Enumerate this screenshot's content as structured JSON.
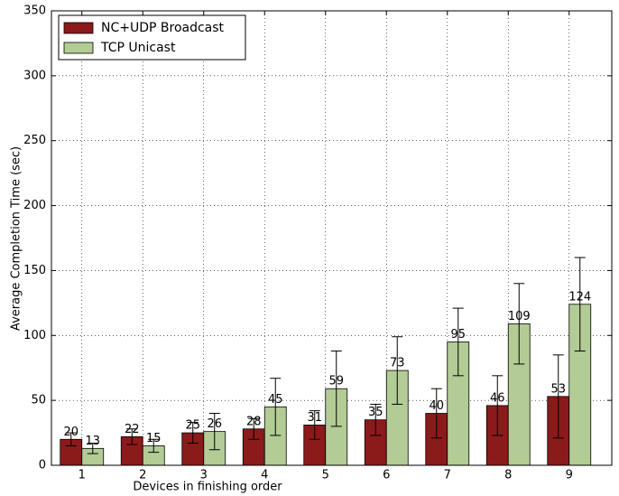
{
  "chart_data": {
    "type": "bar",
    "xlabel": "Devices in finishing order",
    "ylabel": "Average Completion Time (sec)",
    "categories": [
      "1",
      "2",
      "3",
      "4",
      "5",
      "6",
      "7",
      "8",
      "9"
    ],
    "series": [
      {
        "name": "NC+UDP Broadcast",
        "color": "#8b1a1a",
        "values": [
          20,
          22,
          25,
          28,
          31,
          35,
          40,
          46,
          53
        ],
        "errors": [
          5,
          6,
          8,
          8,
          11,
          12,
          19,
          23,
          32
        ]
      },
      {
        "name": "TCP Unicast",
        "color": "#b3cb95",
        "values": [
          13,
          15,
          26,
          45,
          59,
          73,
          95,
          109,
          124
        ],
        "errors": [
          4,
          5,
          14,
          22,
          29,
          26,
          26,
          31,
          36
        ]
      }
    ],
    "ylim": [
      0,
      350
    ],
    "yticks": [
      0,
      50,
      100,
      150,
      200,
      250,
      300,
      350
    ],
    "grid": true,
    "legend": "upper left"
  }
}
